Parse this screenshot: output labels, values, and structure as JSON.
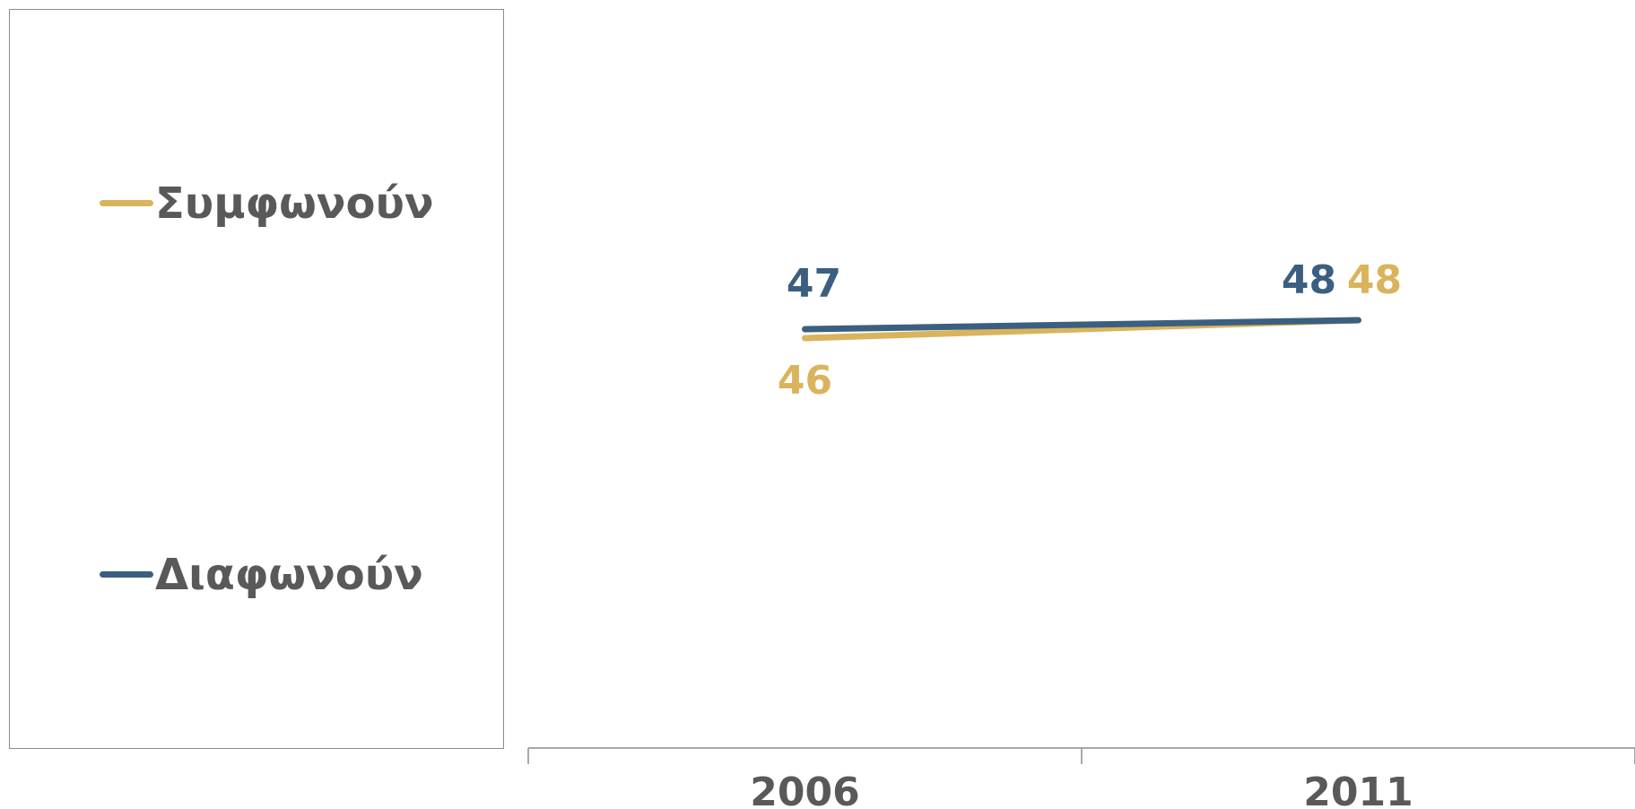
{
  "chart_data": {
    "type": "line",
    "x": [
      "2006",
      "2011"
    ],
    "series": [
      {
        "name": "Συμφωνούν",
        "values": [
          46,
          48
        ],
        "color": "#D9B45C"
      },
      {
        "name": "Διαφωνούν",
        "values": [
          47,
          48
        ],
        "color": "#3B5F80"
      }
    ],
    "legend_position": "left",
    "grid": false
  }
}
